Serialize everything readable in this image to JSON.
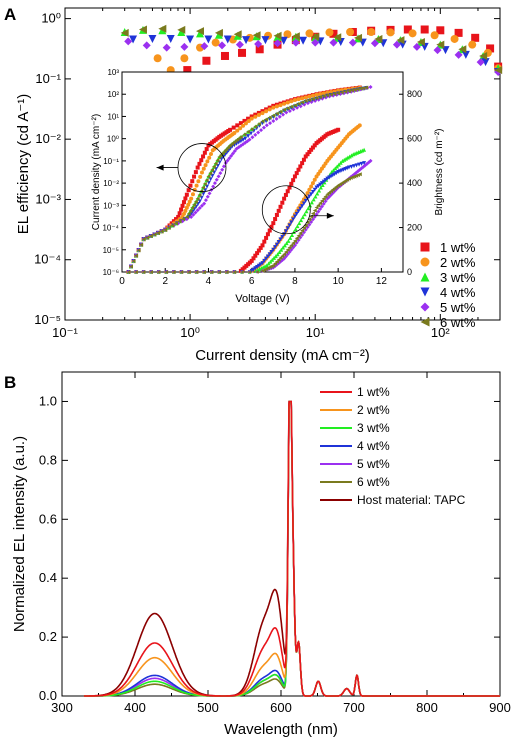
{
  "panels": {
    "A": {
      "label": "A"
    },
    "B": {
      "label": "B"
    }
  },
  "chart_data": [
    {
      "panel": "A",
      "type": "scatter",
      "xlabel": "Current density (mA cm⁻²)",
      "ylabel": "EL efficiency (cd A⁻¹)",
      "xscale": "log",
      "yscale": "log",
      "xlim": [
        0.1,
        300
      ],
      "ylim": [
        1e-05,
        1.5
      ],
      "xticks": [
        {
          "v": 0.1,
          "label": "10⁻¹"
        },
        {
          "v": 1,
          "label": "10⁰"
        },
        {
          "v": 10,
          "label": "10¹"
        },
        {
          "v": 100,
          "label": "10²"
        }
      ],
      "yticks": [
        {
          "v": 1,
          "label": "10⁰"
        },
        {
          "v": 0.1,
          "label": "10⁻¹"
        },
        {
          "v": 0.01,
          "label": "10⁻²"
        },
        {
          "v": 0.001,
          "label": "10⁻³"
        },
        {
          "v": 0.0001,
          "label": "10⁻⁴"
        },
        {
          "v": 1e-05,
          "label": "10⁻⁵"
        }
      ],
      "legend": "right",
      "series": [
        {
          "name": "1 wt%",
          "color": "#e8141b",
          "marker": "square",
          "x": [
            0.72,
            0.95,
            1.35,
            1.9,
            2.6,
            3.6,
            5.0,
            7.0,
            10,
            14,
            20,
            28,
            40,
            55,
            75,
            100,
            140,
            190,
            250,
            290
          ],
          "y": [
            0.11,
            0.14,
            0.2,
            0.24,
            0.27,
            0.31,
            0.37,
            0.44,
            0.5,
            0.56,
            0.6,
            0.63,
            0.65,
            0.66,
            0.66,
            0.64,
            0.58,
            0.48,
            0.32,
            0.16
          ]
        },
        {
          "name": "2 wt%",
          "color": "#f7941d",
          "marker": "circle",
          "x": [
            0.55,
            0.7,
            0.9,
            1.2,
            1.6,
            2.2,
            3.0,
            4.2,
            6,
            9,
            13,
            19,
            28,
            40,
            60,
            90,
            130,
            180,
            240,
            290
          ],
          "y": [
            0.22,
            0.14,
            0.22,
            0.33,
            0.4,
            0.45,
            0.48,
            0.52,
            0.55,
            0.57,
            0.59,
            0.6,
            0.6,
            0.59,
            0.57,
            0.53,
            0.46,
            0.37,
            0.27,
            0.15
          ]
        },
        {
          "name": "3 wt%",
          "color": "#22ee22",
          "marker": "triangle",
          "x": [
            0.3,
            0.42,
            0.6,
            0.85,
            1.2,
            1.7,
            2.4,
            3.4,
            5,
            7,
            10,
            15,
            22,
            32,
            48,
            70,
            100,
            150,
            220,
            290
          ],
          "y": [
            0.6,
            0.65,
            0.64,
            0.6,
            0.57,
            0.54,
            0.52,
            0.51,
            0.5,
            0.5,
            0.49,
            0.48,
            0.47,
            0.46,
            0.44,
            0.41,
            0.37,
            0.31,
            0.24,
            0.15
          ]
        },
        {
          "name": "4 wt%",
          "color": "#1f33d8",
          "marker": "tri-down",
          "x": [
            0.35,
            0.5,
            0.7,
            1.0,
            1.4,
            2.0,
            2.8,
            4.0,
            5.6,
            8,
            11,
            16,
            24,
            35,
            50,
            75,
            110,
            160,
            230,
            290
          ],
          "y": [
            0.45,
            0.46,
            0.46,
            0.45,
            0.45,
            0.45,
            0.44,
            0.44,
            0.43,
            0.43,
            0.42,
            0.41,
            0.4,
            0.39,
            0.37,
            0.34,
            0.3,
            0.25,
            0.19,
            0.13
          ]
        },
        {
          "name": "5 wt%",
          "color": "#9b30f0",
          "marker": "diamond",
          "x": [
            0.32,
            0.45,
            0.65,
            0.9,
            1.3,
            1.8,
            2.5,
            3.5,
            5,
            7,
            10,
            14,
            20,
            30,
            45,
            65,
            95,
            140,
            210,
            290
          ],
          "y": [
            0.42,
            0.36,
            0.33,
            0.34,
            0.35,
            0.36,
            0.37,
            0.38,
            0.39,
            0.4,
            0.4,
            0.4,
            0.4,
            0.39,
            0.37,
            0.34,
            0.3,
            0.25,
            0.19,
            0.13
          ]
        },
        {
          "name": "6 wt%",
          "color": "#7a7a1e",
          "marker": "tri-left",
          "x": [
            0.3,
            0.42,
            0.6,
            0.85,
            1.2,
            1.7,
            2.4,
            3.4,
            5,
            7,
            10,
            15,
            22,
            32,
            48,
            70,
            100,
            150,
            220,
            290
          ],
          "y": [
            0.58,
            0.66,
            0.68,
            0.65,
            0.62,
            0.58,
            0.55,
            0.53,
            0.52,
            0.51,
            0.5,
            0.49,
            0.48,
            0.46,
            0.44,
            0.41,
            0.37,
            0.31,
            0.24,
            0.14
          ]
        }
      ]
    },
    {
      "panel": "A-inset",
      "type": "scatter",
      "xlabel": "Voltage (V)",
      "ylabel": "Current density (mA cm⁻²)",
      "y2label": "Brightness (cd m⁻²)",
      "xlim": [
        0,
        13
      ],
      "ylim": [
        1e-06,
        1000
      ],
      "y2lim": [
        0,
        900
      ],
      "xticks": [
        0,
        2,
        4,
        6,
        8,
        10,
        12
      ],
      "yticks": [
        {
          "v": 1000,
          "label": "10³"
        },
        {
          "v": 100,
          "label": "10²"
        },
        {
          "v": 10,
          "label": "10¹"
        },
        {
          "v": 1,
          "label": "10⁰"
        },
        {
          "v": 0.1,
          "label": "10⁻¹"
        },
        {
          "v": 0.01,
          "label": "10⁻²"
        },
        {
          "v": 0.001,
          "label": "10⁻³"
        },
        {
          "v": 0.0001,
          "label": "10⁻⁴"
        },
        {
          "v": 1e-05,
          "label": "10⁻⁵"
        },
        {
          "v": 1e-06,
          "label": "10⁻⁶"
        }
      ],
      "y2ticks": [
        0,
        200,
        400,
        600,
        800
      ],
      "current_density": [
        {
          "name": "1 wt%",
          "x": [
            0.3,
            1.0,
            2.0,
            2.6,
            3.0,
            3.5,
            4.0,
            4.5,
            5.0,
            6.0,
            7.0,
            8.0,
            9.0,
            10.0,
            11.0
          ],
          "y": [
            1e-06,
            3e-05,
            8e-05,
            0.0003,
            0.003,
            0.05,
            0.5,
            1.2,
            2.5,
            10,
            30,
            60,
            100,
            150,
            200
          ]
        },
        {
          "name": "2 wt%",
          "x": [
            0.3,
            1.0,
            2.0,
            2.8,
            3.2,
            3.7,
            4.2,
            4.7,
            5.2,
            6.0,
            7.0,
            8.0,
            9.0,
            10.0,
            11.0
          ],
          "y": [
            1e-06,
            3e-05,
            8e-05,
            0.0003,
            0.002,
            0.03,
            0.3,
            0.8,
            1.8,
            8,
            25,
            55,
            95,
            145,
            195
          ]
        },
        {
          "name": "3 wt%",
          "x": [
            0.3,
            1.0,
            2.0,
            3.0,
            3.5,
            4.0,
            4.5,
            5.0,
            5.5,
            6.5,
            7.5,
            8.5,
            9.5,
            10.5,
            11.3
          ],
          "y": [
            1e-06,
            3e-05,
            8e-05,
            0.0003,
            0.002,
            0.02,
            0.15,
            0.5,
            1.2,
            6,
            20,
            50,
            90,
            140,
            200
          ]
        },
        {
          "name": "4 wt%",
          "x": [
            0.3,
            1.0,
            2.0,
            3.1,
            3.6,
            4.1,
            4.6,
            5.1,
            5.7,
            6.5,
            7.5,
            8.5,
            9.5,
            10.5,
            11.3
          ],
          "y": [
            1e-06,
            3e-05,
            8e-05,
            0.0003,
            0.0015,
            0.015,
            0.12,
            0.45,
            1.0,
            5,
            18,
            45,
            85,
            135,
            190
          ]
        },
        {
          "name": "5 wt%",
          "x": [
            0.3,
            1.0,
            2.0,
            3.2,
            3.8,
            4.3,
            4.8,
            5.3,
            5.9,
            6.7,
            7.6,
            8.6,
            9.6,
            10.6,
            11.5
          ],
          "y": [
            1e-06,
            3e-05,
            8e-05,
            0.0003,
            0.0012,
            0.01,
            0.08,
            0.35,
            0.9,
            4,
            15,
            40,
            80,
            130,
            210
          ]
        },
        {
          "name": "6 wt%",
          "x": [
            0.3,
            1.0,
            2.0,
            3.0,
            3.5,
            4.0,
            4.5,
            5.0,
            5.5,
            6.5,
            7.5,
            8.5,
            9.5,
            10.5,
            11.3
          ],
          "y": [
            1e-06,
            3e-05,
            8e-05,
            0.0003,
            0.002,
            0.02,
            0.15,
            0.5,
            1.2,
            6,
            20,
            50,
            90,
            140,
            200
          ]
        }
      ],
      "brightness": [
        {
          "name": "1 wt%",
          "x": [
            5.5,
            6.0,
            6.5,
            7.0,
            7.5,
            8.0,
            8.5,
            9.0,
            9.5,
            10.0
          ],
          "y": [
            5,
            50,
            120,
            220,
            330,
            430,
            520,
            580,
            620,
            640
          ]
        },
        {
          "name": "2 wt%",
          "x": [
            6.0,
            6.5,
            7.0,
            7.5,
            8.0,
            8.5,
            9.0,
            9.5,
            10.0,
            10.5,
            11.0
          ],
          "y": [
            5,
            40,
            100,
            170,
            260,
            340,
            430,
            500,
            560,
            620,
            660
          ]
        },
        {
          "name": "3 wt%",
          "x": [
            6.2,
            6.7,
            7.2,
            7.7,
            8.2,
            8.7,
            9.2,
            9.7,
            10.2,
            10.7,
            11.2
          ],
          "y": [
            5,
            30,
            80,
            140,
            220,
            300,
            380,
            450,
            500,
            530,
            550
          ]
        },
        {
          "name": "4 wt%",
          "x": [
            6.0,
            6.5,
            7.0,
            7.5,
            8.0,
            8.5,
            9.0,
            9.5,
            10.0,
            10.5,
            11.2
          ],
          "y": [
            5,
            40,
            100,
            170,
            250,
            320,
            380,
            420,
            450,
            470,
            490
          ]
        },
        {
          "name": "5 wt%",
          "x": [
            6.5,
            7.0,
            7.5,
            8.0,
            8.5,
            9.0,
            9.5,
            10.0,
            10.5,
            11.0,
            11.5
          ],
          "y": [
            5,
            20,
            60,
            120,
            190,
            260,
            330,
            380,
            420,
            460,
            500
          ]
        },
        {
          "name": "6 wt%",
          "x": [
            6.5,
            7.0,
            7.5,
            8.0,
            8.5,
            9.0,
            9.5,
            10.0,
            10.5,
            11.0
          ],
          "y": [
            5,
            30,
            80,
            140,
            210,
            290,
            350,
            390,
            420,
            440
          ]
        }
      ]
    },
    {
      "panel": "B",
      "type": "line",
      "xlabel": "Wavelength (nm)",
      "ylabel": "Normalized EL intensity (a.u.)",
      "xlim": [
        300,
        900
      ],
      "ylim": [
        0,
        1.1
      ],
      "xticks": [
        300,
        400,
        500,
        600,
        700,
        800,
        900
      ],
      "yticks": [
        0.0,
        0.2,
        0.4,
        0.6,
        0.8,
        1.0
      ],
      "legend": "top-right",
      "series": [
        {
          "name": "1 wt%",
          "color": "#e8141b",
          "blue_peak": 0.18,
          "orange_peak": 0.16
        },
        {
          "name": "2 wt%",
          "color": "#f7941d",
          "blue_peak": 0.13,
          "orange_peak": 0.1
        },
        {
          "name": "3 wt%",
          "color": "#22ee22",
          "blue_peak": 0.05,
          "orange_peak": 0.05
        },
        {
          "name": "4 wt%",
          "color": "#1f33d8",
          "blue_peak": 0.07,
          "orange_peak": 0.06
        },
        {
          "name": "5 wt%",
          "color": "#9b30f0",
          "blue_peak": 0.06,
          "orange_peak": 0.05
        },
        {
          "name": "6 wt%",
          "color": "#7a7a1e",
          "blue_peak": 0.04,
          "orange_peak": 0.04
        },
        {
          "name": "Host material: TAPC",
          "color": "#8b0000",
          "blue_peak": 0.28,
          "orange_peak": 0.25
        }
      ]
    }
  ]
}
